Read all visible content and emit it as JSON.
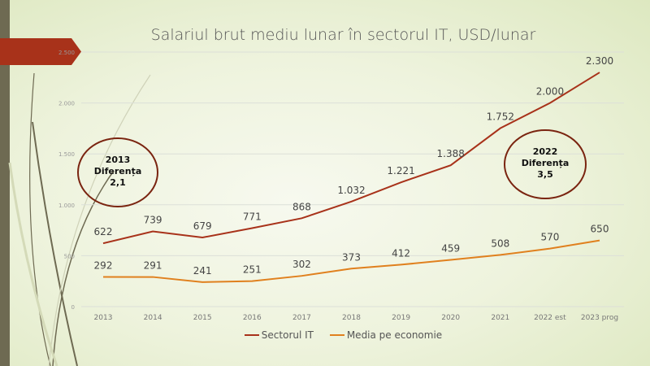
{
  "chart_data": {
    "type": "line",
    "title": "Salariul brut mediu lunar  în sectorul IT, USD/lunar",
    "categories": [
      "2013",
      "2014",
      "2015",
      "2016",
      "2017",
      "2018",
      "2019",
      "2020",
      "2021",
      "2022 est",
      "2023 prog"
    ],
    "series": [
      {
        "name": "Sectorul IT",
        "color": "#a8321a",
        "values": [
          622,
          739,
          679,
          771,
          868,
          1032,
          1221,
          1388,
          1752,
          2000,
          2300
        ],
        "labels": [
          "622",
          "739",
          "679",
          "771",
          "868",
          "1.032",
          "1.221",
          "1.388",
          "1.752",
          "2.000",
          "2.300"
        ]
      },
      {
        "name": "Media pe economie",
        "color": "#e0801e",
        "values": [
          292,
          291,
          241,
          251,
          302,
          373,
          412,
          459,
          508,
          570,
          650
        ],
        "labels": [
          "292",
          "291",
          "241",
          "251",
          "302",
          "373",
          "412",
          "459",
          "508",
          "570",
          "650"
        ]
      }
    ],
    "yticks": [
      0,
      500,
      1000,
      1500,
      2000,
      2500
    ],
    "ytick_labels": [
      "0",
      "500",
      "1.000",
      "1.500",
      "2.000",
      "2.500"
    ],
    "ylim": [
      0,
      2500
    ],
    "grid": true,
    "legend": "bottom",
    "annotations": [
      {
        "lines": [
          "2013",
          "Diferența",
          "2,1"
        ]
      },
      {
        "lines": [
          "2022",
          "Diferența",
          "3,5"
        ]
      }
    ]
  }
}
